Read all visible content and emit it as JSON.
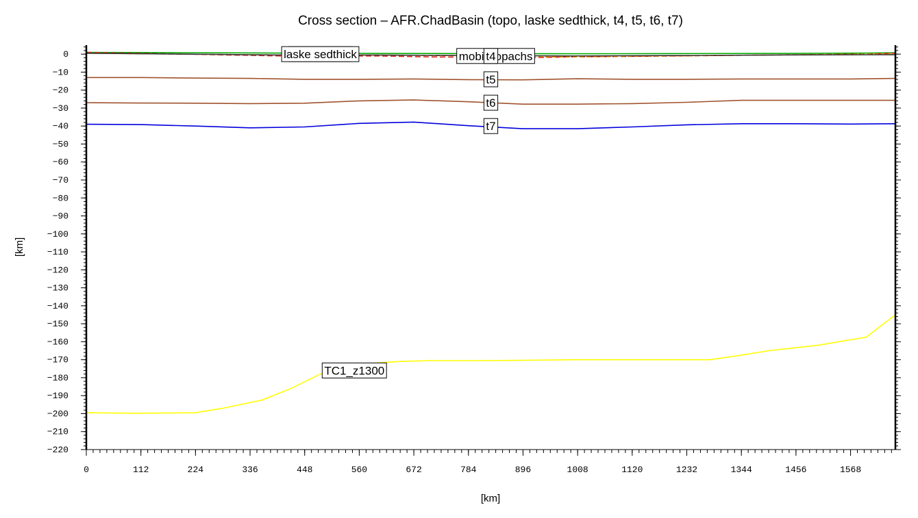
{
  "chart_data": {
    "type": "line",
    "title": "Cross section – AFR.ChadBasin (topo, laske sedthick, t4, t5, t6, t7)",
    "xlabel": "[km]",
    "ylabel": "[km]",
    "xlim": [
      0,
      1660
    ],
    "ylim": [
      -220,
      5
    ],
    "x_ticks": [
      0,
      112,
      224,
      336,
      448,
      560,
      672,
      784,
      896,
      1008,
      1120,
      1232,
      1344,
      1456,
      1568
    ],
    "y_ticks": [
      0,
      -10,
      -20,
      -30,
      -40,
      -50,
      -60,
      -70,
      -80,
      -90,
      -100,
      -110,
      -120,
      -130,
      -140,
      -150,
      -160,
      -170,
      -180,
      -190,
      -200,
      -210,
      -220
    ],
    "grid": false,
    "legend": "none",
    "series": [
      {
        "name": "topography",
        "color": "#00aa00",
        "dash": "",
        "label_at": [
          480,
          0
        ],
        "x": [
          0,
          200,
          400,
          600,
          800,
          1000,
          1200,
          1400,
          1600,
          1660
        ],
        "y": [
          1,
          0.8,
          0.6,
          0.4,
          0.3,
          0.2,
          0.3,
          0.4,
          0.6,
          0.8
        ]
      },
      {
        "name": "laske sedthick",
        "color": "#dd2222",
        "dash": "8,4",
        "label_at": [
          480,
          0
        ],
        "x": [
          0,
          200,
          400,
          600,
          700,
          900,
          1000,
          1200,
          1400,
          1600,
          1660
        ],
        "y": [
          1,
          0,
          -1,
          -1,
          -1.5,
          -2,
          -1.5,
          -1,
          -0.5,
          0,
          0.5
        ]
      },
      {
        "name": "mobilisopachs",
        "color": "#ff8800",
        "dash": "6,4",
        "label_at": [
          840,
          -1
        ],
        "x": [
          0,
          200,
          400,
          600,
          800,
          900,
          1000,
          1200,
          1400,
          1600,
          1660
        ],
        "y": [
          0.5,
          0,
          -0.5,
          -0.5,
          -1,
          -1.5,
          -1.5,
          -1,
          -0.5,
          0,
          0
        ]
      },
      {
        "name": "t4",
        "color": "#333333",
        "dash": "",
        "label_at": [
          830,
          -1
        ],
        "x": [
          0,
          200,
          400,
          600,
          800,
          1000,
          1200,
          1400,
          1660
        ],
        "y": [
          0.5,
          0,
          -0.5,
          -0.5,
          -0.8,
          -1,
          -0.8,
          -0.5,
          -0.3
        ]
      },
      {
        "name": "t5",
        "color": "#a0522d",
        "dash": "",
        "label_at": [
          830,
          -14
        ],
        "x": [
          0,
          112,
          224,
          336,
          448,
          560,
          672,
          784,
          896,
          1008,
          1120,
          1232,
          1344,
          1456,
          1568,
          1660
        ],
        "y": [
          -13,
          -13,
          -13.3,
          -13.5,
          -14,
          -14,
          -13.8,
          -14.2,
          -14.3,
          -13.7,
          -14,
          -14,
          -13.8,
          -13.8,
          -13.8,
          -13.5
        ]
      },
      {
        "name": "t6",
        "color": "#a0522d",
        "dash": "",
        "label_at": [
          830,
          -27
        ],
        "x": [
          0,
          112,
          224,
          336,
          448,
          560,
          672,
          784,
          896,
          1008,
          1120,
          1232,
          1344,
          1456,
          1568,
          1660
        ],
        "y": [
          -27,
          -27.2,
          -27.3,
          -27.5,
          -27.3,
          -26,
          -25.5,
          -26.5,
          -27.8,
          -27.8,
          -27.5,
          -26.8,
          -25.7,
          -25.7,
          -25.7,
          -25.7
        ]
      },
      {
        "name": "t7",
        "color": "#0000dd",
        "dash": "",
        "label_at": [
          830,
          -40
        ],
        "x": [
          0,
          112,
          224,
          336,
          448,
          560,
          672,
          784,
          896,
          1008,
          1120,
          1232,
          1344,
          1456,
          1568,
          1660
        ],
        "y": [
          -39,
          -39.2,
          -40,
          -41,
          -40.5,
          -38.5,
          -37.8,
          -39.8,
          -41.5,
          -41.5,
          -40.5,
          -39.3,
          -38.7,
          -38.7,
          -38.9,
          -38.7
        ]
      },
      {
        "name": "TC1_z1300",
        "color": "#ffff00",
        "dash": "",
        "label_at": [
          550,
          -176
        ],
        "x": [
          0,
          100,
          224,
          280,
          360,
          420,
          480,
          560,
          640,
          700,
          800,
          900,
          1000,
          1100,
          1200,
          1280,
          1344,
          1400,
          1500,
          1600,
          1660
        ],
        "y": [
          -199.5,
          -199.8,
          -199.5,
          -197,
          -192.5,
          -186,
          -178,
          -172.5,
          -171,
          -170.5,
          -170.5,
          -170.3,
          -170,
          -170,
          -170,
          -170,
          -167.5,
          -165,
          -162,
          -157.5,
          -145
        ]
      }
    ]
  }
}
